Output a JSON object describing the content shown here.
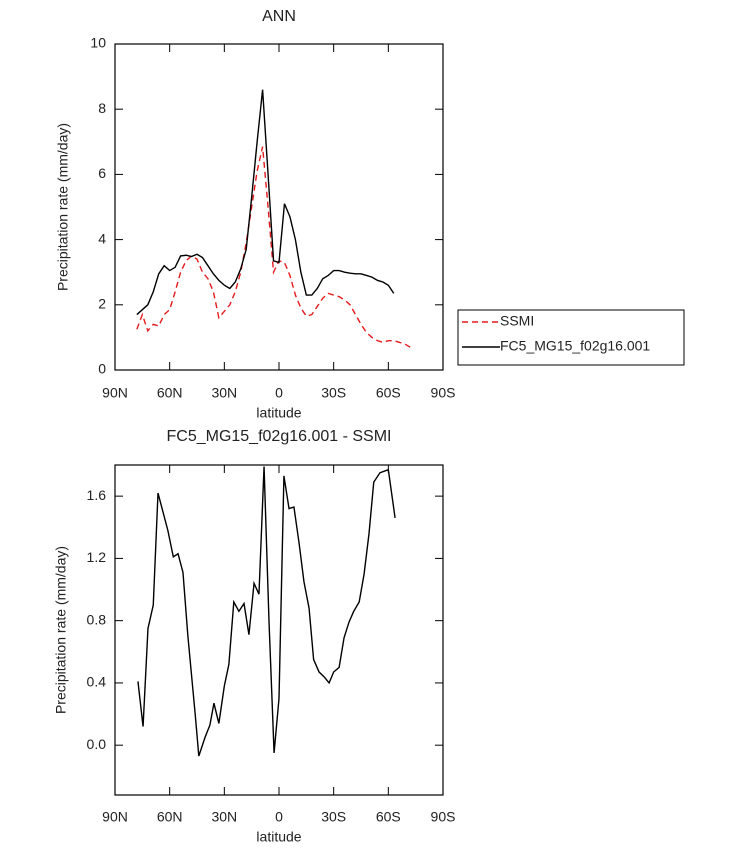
{
  "chart_data": [
    {
      "type": "line",
      "title": "ANN",
      "x_label": "latitude",
      "y_label": "Precipitation rate (mm/day)",
      "x": [
        78,
        75,
        72,
        69,
        66,
        63,
        60,
        57,
        54,
        51,
        48,
        45,
        42,
        39,
        36,
        33,
        30,
        27,
        24,
        21,
        18,
        15,
        12,
        9,
        6,
        3,
        0,
        -3,
        -6,
        -9,
        -12,
        -15,
        -18,
        -21,
        -24,
        -27,
        -30,
        -33,
        -36,
        -39,
        -42,
        -45,
        -48,
        -51,
        -54,
        -57,
        -60,
        -63,
        -66,
        -69,
        -72
      ],
      "series": [
        {
          "name": "SSMI",
          "color": "#e41a1c",
          "line_style": "dashed",
          "values": [
            1.25,
            1.7,
            1.2,
            1.4,
            1.35,
            1.7,
            1.85,
            2.4,
            3.0,
            3.35,
            3.5,
            3.4,
            3.0,
            2.8,
            2.4,
            1.6,
            1.8,
            2.0,
            2.4,
            3.0,
            3.9,
            5.0,
            6.1,
            6.85,
            5.0,
            3.0,
            3.35,
            3.3,
            2.9,
            2.3,
            1.9,
            1.65,
            1.7,
            1.95,
            2.2,
            2.35,
            2.3,
            2.25,
            2.15,
            2.0,
            1.7,
            1.4,
            1.15,
            1.0,
            0.9,
            0.85,
            0.9,
            0.9,
            0.85,
            0.8,
            0.7
          ]
        },
        {
          "name": "FC5_MG15_f02g16.001",
          "color": "#000000",
          "line_style": "solid",
          "values": [
            1.7,
            1.85,
            2.0,
            2.4,
            2.95,
            3.2,
            3.05,
            3.15,
            3.5,
            3.52,
            3.48,
            3.55,
            3.45,
            3.2,
            2.95,
            2.75,
            2.6,
            2.5,
            2.7,
            3.1,
            3.7,
            5.3,
            7.0,
            8.6,
            6.0,
            3.35,
            3.3,
            5.1,
            4.7,
            4.0,
            3.0,
            2.3,
            2.3,
            2.5,
            2.8,
            2.9,
            3.05,
            3.05,
            3.0,
            2.97,
            2.95,
            2.95,
            2.9,
            2.85,
            2.75,
            2.7,
            2.6,
            2.35,
            null,
            null,
            null
          ]
        }
      ],
      "xlim": [
        90,
        -90
      ],
      "xticks": [
        {
          "value": 90,
          "label": "90N"
        },
        {
          "value": 60,
          "label": "60N"
        },
        {
          "value": 30,
          "label": "30N"
        },
        0,
        {
          "value": -30,
          "label": "30S"
        },
        {
          "value": -60,
          "label": "60S"
        },
        {
          "value": -90,
          "label": "90S"
        }
      ],
      "ylim": [
        0,
        10
      ],
      "yticks": [
        0,
        2,
        4,
        6,
        8,
        10
      ],
      "legend": "right"
    },
    {
      "type": "line",
      "title": "FC5_MG15_f02g16.001 - SSMI",
      "x_label": "latitude",
      "y_label": "Precipitation rate (mm/day)",
      "x": [
        77.4,
        74.6,
        71.9,
        69,
        66.4,
        63.7,
        61,
        58,
        55.4,
        52.7,
        50,
        46,
        44,
        40.6,
        37.9,
        35.7,
        33,
        30,
        27.5,
        24.8,
        22,
        19.2,
        16.5,
        13.7,
        11,
        8.2,
        5.5,
        2.7,
        0,
        -2.7,
        -5.5,
        -8.2,
        -11,
        -13.7,
        -16.5,
        -19,
        -22,
        -24.7,
        -27.5,
        -30,
        -33,
        -35.7,
        -38.4,
        -41,
        -44,
        -46.7,
        -49.4,
        -52,
        -55.4,
        -60,
        -63.7
      ],
      "series": [
        {
          "color": "#000000",
          "line_style": "solid",
          "values": [
            0.41,
            0.12,
            0.75,
            0.9,
            1.62,
            1.5,
            1.38,
            1.21,
            1.23,
            1.11,
            0.7,
            0.2,
            -0.07,
            0.05,
            0.13,
            0.27,
            0.14,
            0.38,
            0.52,
            0.92,
            0.86,
            0.91,
            0.71,
            1.04,
            0.97,
            1.79,
            0.8,
            -0.05,
            0.3,
            1.73,
            1.52,
            1.53,
            1.3,
            1.05,
            0.88,
            0.55,
            0.47,
            0.44,
            0.4,
            0.47,
            0.5,
            0.69,
            0.79,
            0.86,
            0.92,
            1.1,
            1.36,
            1.69,
            1.75,
            1.77,
            1.46
          ]
        }
      ],
      "xlim": [
        90,
        -90
      ],
      "xticks": [
        {
          "value": 90,
          "label": "90N"
        },
        {
          "value": 60,
          "label": "60N"
        },
        {
          "value": 30,
          "label": "30N"
        },
        0,
        {
          "value": -30,
          "label": "30S"
        },
        {
          "value": -60,
          "label": "60S"
        },
        {
          "value": -90,
          "label": "90S"
        }
      ],
      "ylim": [
        -0.32,
        1.8
      ],
      "yticks": [
        {
          "value": 0,
          "label": "0.0"
        },
        0.4,
        0.8,
        1.2,
        1.6
      ]
    }
  ]
}
